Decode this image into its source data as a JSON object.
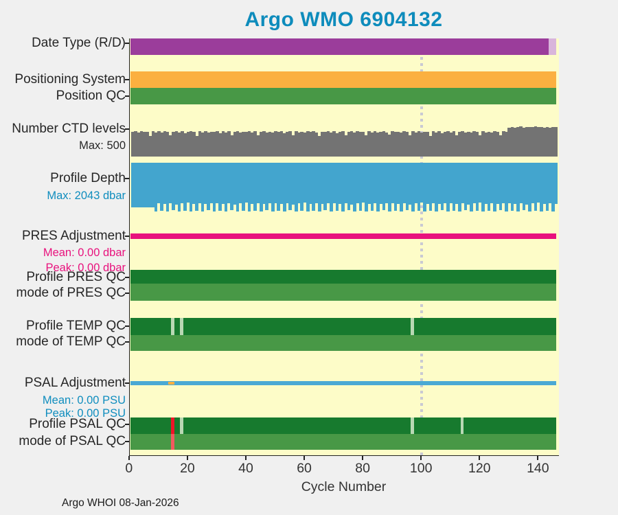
{
  "title": "Argo WMO 6904132",
  "footer": "Argo WHOI 08-Jan-2026",
  "xlabel": "Cycle Number",
  "labels": {
    "date_type": "Date Type (R/D)",
    "pos_system": "Positioning System",
    "pos_qc": "Position QC",
    "ctd": "Number CTD levels",
    "ctd_max": "Max: 500",
    "depth": "Profile Depth",
    "depth_max": "Max: 2043 dbar",
    "pres_adj": "PRES Adjustment",
    "pres_mean": "Mean: 0.00 dbar",
    "pres_peak": "Peak: 0.00 dbar",
    "pres_qc": "Profile PRES QC",
    "mode_pres_qc": "mode of PRES QC",
    "temp_qc": "Profile TEMP QC",
    "mode_temp_qc": "mode of TEMP QC",
    "psal_adj": "PSAL Adjustment",
    "psal_mean": "Mean: 0.00 PSU",
    "psal_peak": "Peak: 0.00 PSU",
    "psal_qc": "Profile PSAL QC",
    "mode_psal_qc": "mode of PSAL QC"
  },
  "colors": {
    "title": "#0E8CBC",
    "plot_bg": "#FDFCC8",
    "page_bg": "#F0F0F0",
    "purple": "#9B3D9B",
    "light_purple": "#D9B5DB",
    "orange": "#FBB040",
    "green": "#489846",
    "dark_green": "#177A2E",
    "pale_green": "#B9D8B4",
    "gray_bar": "#737373",
    "blue_bar": "#43A5CE",
    "magenta": "#E8127D",
    "blue_line": "#4AA9D4",
    "red": "#F01428",
    "pink": "#F2595F",
    "dotted": "#C9C9D3",
    "text": "#262626",
    "blue_text": "#0F8DBE"
  },
  "chart_data": {
    "type": "bar",
    "title": "Argo WMO 6904132",
    "xlabel": "Cycle Number",
    "x_axis": {
      "ticks": [
        0,
        20,
        40,
        60,
        80,
        100,
        120,
        140
      ],
      "range": [
        0,
        147
      ]
    },
    "dashed_marker_cycle": 100,
    "n_cycles": 146,
    "tracks": [
      {
        "id": "date_type",
        "name": "Date Type (R/D)",
        "kind": "segments",
        "segments": [
          {
            "from": 0,
            "to": 143.5,
            "color": "purple"
          },
          {
            "from": 143.5,
            "to": 146,
            "color": "light_purple"
          }
        ]
      },
      {
        "id": "pos_system",
        "name": "Positioning System",
        "kind": "segments",
        "segments": [
          {
            "from": 0,
            "to": 146,
            "color": "orange"
          }
        ]
      },
      {
        "id": "pos_qc",
        "name": "Position QC",
        "kind": "segments",
        "segments": [
          {
            "from": 0,
            "to": 146,
            "color": "green"
          }
        ]
      },
      {
        "id": "ctd_levels",
        "name": "Number CTD levels",
        "kind": "bars",
        "max": 500,
        "color": "gray_bar",
        "values": [
          408,
          415,
          398,
          420,
          405,
          412,
          340,
          418,
          402,
          415,
          395,
          420,
          408,
          350,
          412,
          418,
          400,
          415,
          392,
          410,
          418,
          405,
          345,
          415,
          400,
          420,
          395,
          412,
          406,
          418,
          390,
          415,
          402,
          420,
          355,
          410,
          418,
          395,
          412,
          405,
          420,
          398,
          415,
          348,
          408,
          418,
          400,
          412,
          395,
          415,
          405,
          420,
          390,
          410,
          415,
          352,
          418,
          402,
          412,
          398,
          415,
          408,
          420,
          395,
          345,
          412,
          405,
          418,
          400,
          415,
          392,
          410,
          418,
          355,
          405,
          415,
          398,
          420,
          408,
          412,
          348,
          415,
          400,
          418,
          395,
          410,
          420,
          402,
          358,
          415,
          405,
          412,
          398,
          418,
          408,
          350,
          415,
          400,
          420,
          395,
          412,
          405,
          345,
          418,
          402,
          415,
          390,
          410,
          418,
          398,
          415,
          352,
          408,
          420,
          400,
          412,
          395,
          415,
          405,
          348,
          418,
          402,
          412,
          398,
          415,
          408,
          355,
          420,
          410,
          482,
          490,
          478,
          488,
          495,
          480,
          486,
          492,
          483,
          500,
          490,
          485,
          478,
          488,
          482,
          492,
          486
        ]
      },
      {
        "id": "profile_depth",
        "name": "Profile Depth",
        "kind": "bars_down",
        "max": 2043,
        "unit": "dbar",
        "color": "blue_bar",
        "values": [
          1865,
          1870,
          1860,
          1872,
          1868,
          1862,
          1870,
          1866,
          2043,
          1700,
          2020,
          1730,
          2035,
          1690,
          1995,
          1750,
          2043,
          1710,
          2010,
          1680,
          2030,
          1740,
          2000,
          1695,
          2040,
          1720,
          1990,
          1705,
          2043,
          1700,
          2020,
          1730,
          2035,
          1690,
          1995,
          1750,
          2043,
          1710,
          2010,
          1680,
          2030,
          1740,
          2000,
          1695,
          2040,
          1720,
          1990,
          1705,
          2043,
          1700,
          2020,
          1730,
          2035,
          1690,
          1995,
          1750,
          2043,
          1710,
          2010,
          1680,
          2030,
          1740,
          2000,
          1695,
          2040,
          1720,
          1990,
          1705,
          2043,
          1700,
          2020,
          1730,
          2035,
          1690,
          1995,
          1750,
          2043,
          1710,
          2010,
          1680,
          2030,
          1740,
          2000,
          1695,
          2040,
          1720,
          1990,
          1705,
          2043,
          1700,
          2020,
          1730,
          2035,
          1690,
          1995,
          1750,
          2043,
          1710,
          2010,
          1680,
          2030,
          1740,
          2000,
          1695,
          2040,
          1720,
          1990,
          1705,
          2043,
          1700,
          2020,
          1730,
          2035,
          1690,
          1995,
          1750,
          2043,
          1710,
          2010,
          1680,
          2030,
          1740,
          2000,
          1695,
          2040,
          1720,
          1990,
          1705,
          2043,
          1700,
          2020,
          1730,
          2035,
          1690,
          1995,
          1750,
          2043,
          1710,
          2010,
          1680,
          2030,
          1740,
          2000,
          1695,
          2040,
          1720
        ]
      },
      {
        "id": "pres_adj",
        "name": "PRES Adjustment",
        "kind": "line",
        "color": "magenta",
        "mean": "0.00 dbar",
        "peak": "0.00 dbar"
      },
      {
        "id": "pres_qc",
        "name": "Profile PRES QC",
        "kind": "segments",
        "segments": [
          {
            "from": 0,
            "to": 146,
            "color": "dark_green"
          }
        ]
      },
      {
        "id": "mode_pres_qc",
        "name": "mode of PRES QC",
        "kind": "segments",
        "segments": [
          {
            "from": 0,
            "to": 146,
            "color": "green"
          }
        ]
      },
      {
        "id": "temp_qc",
        "name": "Profile TEMP QC",
        "kind": "segments",
        "segments": [
          {
            "from": 0,
            "to": 146,
            "color": "dark_green"
          }
        ],
        "marks": [
          {
            "cycle": 15,
            "color": "pale_green"
          },
          {
            "cycle": 18,
            "color": "pale_green"
          },
          {
            "cycle": 97,
            "color": "pale_green"
          }
        ]
      },
      {
        "id": "mode_temp_qc",
        "name": "mode of TEMP QC",
        "kind": "segments",
        "segments": [
          {
            "from": 0,
            "to": 146,
            "color": "green"
          }
        ]
      },
      {
        "id": "psal_adj",
        "name": "PSAL Adjustment",
        "kind": "line",
        "color": "blue_line",
        "mean": "0.00 PSU",
        "peak": "0.00 PSU",
        "overlays": [
          {
            "from": 13.2,
            "to": 15.2,
            "color": "orange"
          }
        ]
      },
      {
        "id": "psal_qc",
        "name": "Profile PSAL QC",
        "kind": "segments",
        "segments": [
          {
            "from": 0,
            "to": 146,
            "color": "dark_green"
          }
        ],
        "marks": [
          {
            "cycle": 15,
            "color": "red"
          },
          {
            "cycle": 18,
            "color": "pale_green"
          },
          {
            "cycle": 97,
            "color": "pale_green"
          },
          {
            "cycle": 114,
            "color": "pale_green"
          }
        ]
      },
      {
        "id": "mode_psal_qc",
        "name": "mode of PSAL QC",
        "kind": "segments",
        "segments": [
          {
            "from": 0,
            "to": 146,
            "color": "green"
          }
        ],
        "marks": [
          {
            "cycle": 15,
            "color": "pink"
          }
        ]
      }
    ]
  }
}
